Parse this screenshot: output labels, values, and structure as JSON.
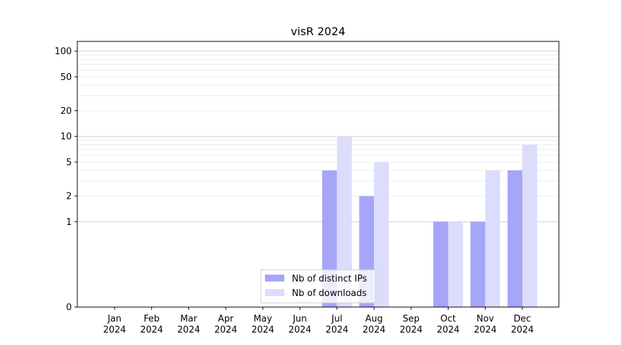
{
  "chart_data": {
    "type": "bar",
    "title": "visR 2024",
    "xlabel": "",
    "ylabel": "",
    "y_scale": "symlog",
    "ylim": [
      0,
      130
    ],
    "grid": "y (major and minor)",
    "legend_placement": "bottom-center",
    "categories": [
      {
        "month": "Jan",
        "year": "2024"
      },
      {
        "month": "Feb",
        "year": "2024"
      },
      {
        "month": "Mar",
        "year": "2024"
      },
      {
        "month": "Apr",
        "year": "2024"
      },
      {
        "month": "May",
        "year": "2024"
      },
      {
        "month": "Jun",
        "year": "2024"
      },
      {
        "month": "Jul",
        "year": "2024"
      },
      {
        "month": "Aug",
        "year": "2024"
      },
      {
        "month": "Sep",
        "year": "2024"
      },
      {
        "month": "Oct",
        "year": "2024"
      },
      {
        "month": "Nov",
        "year": "2024"
      },
      {
        "month": "Dec",
        "year": "2024"
      }
    ],
    "y_ticks": [
      0,
      1,
      2,
      5,
      10,
      20,
      50,
      100
    ],
    "series": [
      {
        "name": "Nb of distinct IPs",
        "color": "#a6a6f8",
        "values": [
          0,
          0,
          0,
          0,
          0,
          0,
          4,
          2,
          0,
          1,
          1,
          4
        ]
      },
      {
        "name": "Nb of downloads",
        "color": "#dcdcfc",
        "values": [
          0,
          0,
          0,
          0,
          0,
          0,
          10,
          5,
          0,
          1,
          4,
          8
        ]
      }
    ]
  }
}
